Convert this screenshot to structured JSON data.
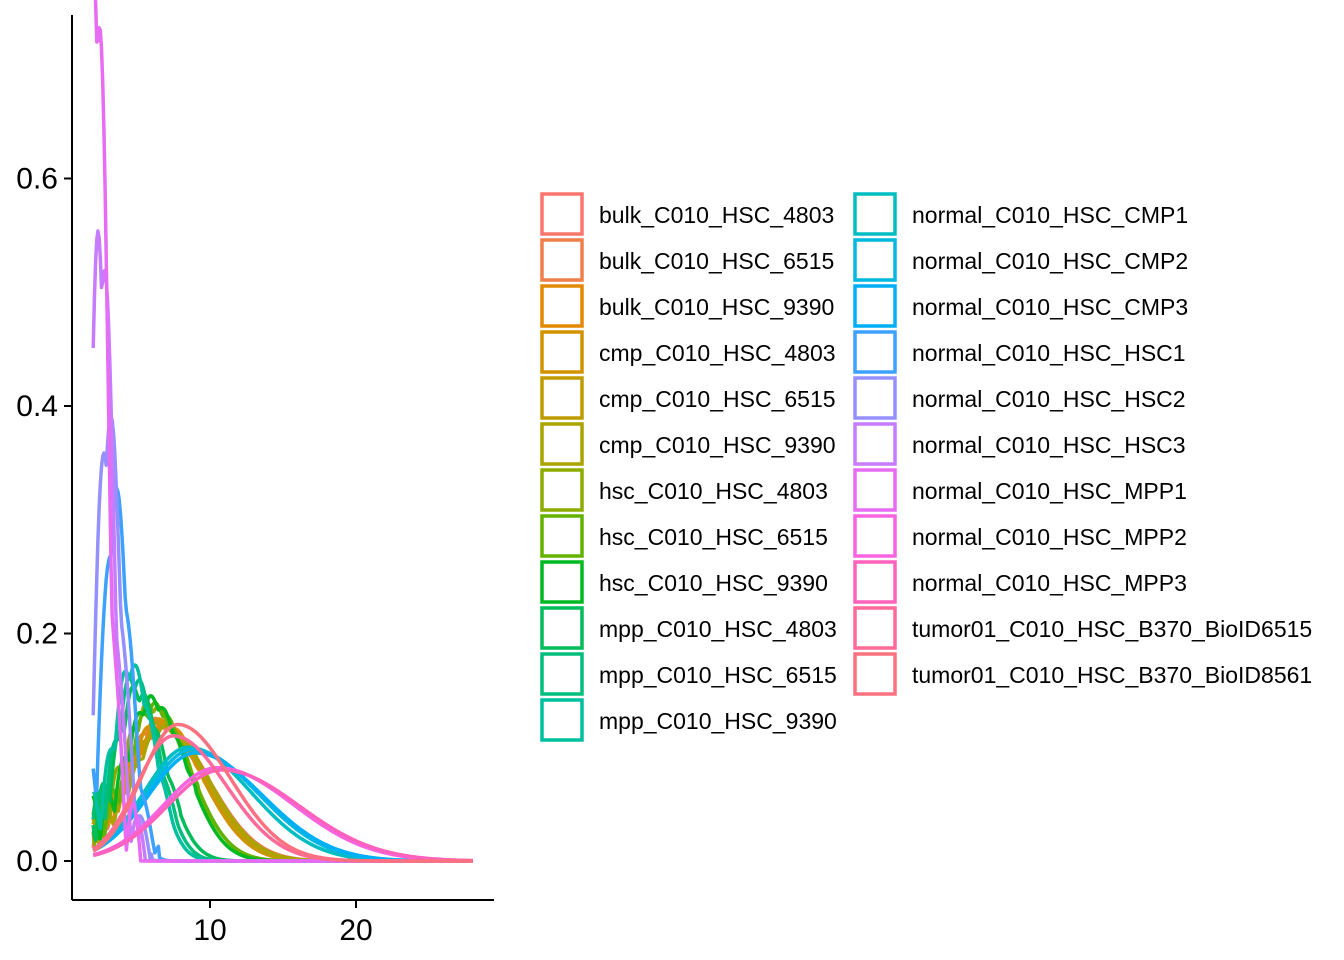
{
  "chart_data": {
    "type": "density-line",
    "title": "",
    "xlabel": "",
    "ylabel": "",
    "xlim": [
      1.0,
      29.5
    ],
    "ylim": [
      -0.05,
      0.74
    ],
    "x_ticks": [
      {
        "value": 10,
        "label": "10"
      },
      {
        "value": 20,
        "label": "20"
      }
    ],
    "y_ticks": [
      {
        "value": 0.0,
        "label": "0.0"
      },
      {
        "value": 0.2,
        "label": "0.2"
      },
      {
        "value": 0.4,
        "label": "0.4"
      },
      {
        "value": 0.6,
        "label": "0.6"
      }
    ],
    "grid": false,
    "legend_position": "right",
    "legend_columns": 2,
    "series": [
      {
        "name": "bulk_C010_HSC_4803",
        "color": "#F8766D",
        "peak_x": 6.8,
        "peak_y": 0.115,
        "sd": 3.2,
        "osc_amp": 0.03,
        "end_x": 28
      },
      {
        "name": "bulk_C010_HSC_6515",
        "color": "#EF7F49",
        "peak_x": 6.5,
        "peak_y": 0.12,
        "sd": 3.0,
        "osc_amp": 0.035,
        "end_x": 28
      },
      {
        "name": "bulk_C010_HSC_9390",
        "color": "#E38900",
        "peak_x": 6.8,
        "peak_y": 0.118,
        "sd": 3.1,
        "osc_amp": 0.03,
        "end_x": 28
      },
      {
        "name": "cmp_C010_HSC_4803",
        "color": "#D39200",
        "peak_x": 6.5,
        "peak_y": 0.12,
        "sd": 3.0,
        "osc_amp": 0.03,
        "end_x": 28
      },
      {
        "name": "cmp_C010_HSC_6515",
        "color": "#C09B00",
        "peak_x": 6.7,
        "peak_y": 0.118,
        "sd": 3.0,
        "osc_amp": 0.03,
        "end_x": 28
      },
      {
        "name": "cmp_C010_HSC_9390",
        "color": "#A9A400",
        "peak_x": 6.9,
        "peak_y": 0.114,
        "sd": 3.1,
        "osc_amp": 0.03,
        "end_x": 28
      },
      {
        "name": "hsc_C010_HSC_4803",
        "color": "#8DAB00",
        "peak_x": 6.0,
        "peak_y": 0.13,
        "sd": 2.6,
        "osc_amp": 0.05,
        "end_x": 28
      },
      {
        "name": "hsc_C010_HSC_6515",
        "color": "#64B200",
        "peak_x": 6.2,
        "peak_y": 0.13,
        "sd": 2.5,
        "osc_amp": 0.05,
        "end_x": 28
      },
      {
        "name": "hsc_C010_HSC_9390",
        "color": "#00B81F",
        "peak_x": 6.0,
        "peak_y": 0.135,
        "sd": 2.4,
        "osc_amp": 0.05,
        "end_x": 28
      },
      {
        "name": "mpp_C010_HSC_4803",
        "color": "#00BC59",
        "peak_x": 5.0,
        "peak_y": 0.14,
        "sd": 1.9,
        "osc_amp": 0.05,
        "end_x": 28
      },
      {
        "name": "mpp_C010_HSC_6515",
        "color": "#00BF7D",
        "peak_x": 4.8,
        "peak_y": 0.15,
        "sd": 1.7,
        "osc_amp": 0.05,
        "end_x": 28
      },
      {
        "name": "mpp_C010_HSC_9390",
        "color": "#00C0A0",
        "peak_x": 4.6,
        "peak_y": 0.16,
        "sd": 1.6,
        "osc_amp": 0.05,
        "end_x": 28
      },
      {
        "name": "normal_C010_HSC_CMP1",
        "color": "#00BDC2",
        "peak_x": 8.5,
        "peak_y": 0.1,
        "sd": 4.3,
        "osc_amp": 0.0,
        "end_x": 28
      },
      {
        "name": "normal_C010_HSC_CMP2",
        "color": "#00B8E0",
        "peak_x": 8.8,
        "peak_y": 0.098,
        "sd": 4.5,
        "osc_amp": 0.0,
        "end_x": 28
      },
      {
        "name": "normal_C010_HSC_CMP3",
        "color": "#00AFF6",
        "peak_x": 9.0,
        "peak_y": 0.095,
        "sd": 4.6,
        "osc_amp": 0.0,
        "end_x": 28
      },
      {
        "name": "normal_C010_HSC_HSC1",
        "color": "#3DA1FF",
        "peak_x": 3.5,
        "peak_y": 0.29,
        "sd": 1.0,
        "osc_amp": 0.08,
        "end_x": 28
      },
      {
        "name": "normal_C010_HSC_HSC2",
        "color": "#9590FF",
        "peak_x": 3.0,
        "peak_y": 0.35,
        "sd": 0.9,
        "osc_amp": 0.1,
        "end_x": 28
      },
      {
        "name": "normal_C010_HSC_HSC3",
        "color": "#C77CFF",
        "peak_x": 2.5,
        "peak_y": 0.5,
        "sd": 0.8,
        "osc_amp": 0.12,
        "end_x": 28
      },
      {
        "name": "normal_C010_HSC_MPP1",
        "color": "#E76BF3",
        "peak_x": 2.2,
        "peak_y": 0.71,
        "sd": 0.7,
        "osc_amp": 0.15,
        "end_x": 28
      },
      {
        "name": "normal_C010_HSC_MPP2",
        "color": "#F763E0",
        "peak_x": 10.5,
        "peak_y": 0.082,
        "sd": 5.2,
        "osc_amp": 0.0,
        "end_x": 28
      },
      {
        "name": "normal_C010_HSC_MPP3",
        "color": "#FF62BC",
        "peak_x": 10.8,
        "peak_y": 0.08,
        "sd": 5.3,
        "osc_amp": 0.0,
        "end_x": 28
      },
      {
        "name": "tumor01_C010_HSC_B370_BioID6515",
        "color": "#FF6A98",
        "peak_x": 7.5,
        "peak_y": 0.11,
        "sd": 3.6,
        "osc_amp": 0.0,
        "end_x": 28
      },
      {
        "name": "tumor01_C010_HSC_B370_BioID8561",
        "color": "#FC717F",
        "peak_x": 7.8,
        "peak_y": 0.12,
        "sd": 3.6,
        "osc_amp": 0.0,
        "end_x": 28
      }
    ]
  }
}
